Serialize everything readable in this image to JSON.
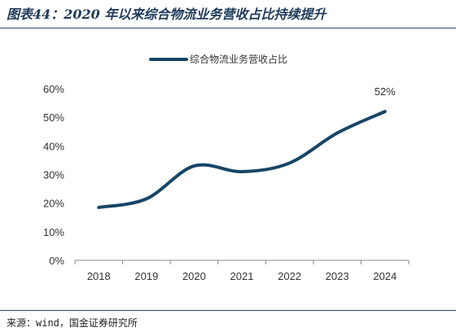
{
  "header": {
    "title": "图表44：2020 年以来综合物流业务营收占比持续提升"
  },
  "footer": {
    "source": "来源：wind，国金证券研究所"
  },
  "colors": {
    "line": "#174566",
    "axis": "#888888",
    "text": "#333333"
  },
  "chart_data": {
    "type": "line",
    "categories": [
      "2018",
      "2019",
      "2020",
      "2021",
      "2022",
      "2023",
      "2024"
    ],
    "series": [
      {
        "name": "综合物流业务营收占比",
        "values": [
          18.5,
          21.5,
          33,
          31,
          34,
          44.5,
          52
        ]
      }
    ],
    "ylim": [
      0,
      60
    ],
    "yticks": [
      "0%",
      "10%",
      "20%",
      "30%",
      "40%",
      "50%",
      "60%"
    ],
    "ytick_values": [
      0,
      10,
      20,
      30,
      40,
      50,
      60
    ],
    "annotation": "52%",
    "legend_position": "top-center",
    "grid": false
  }
}
